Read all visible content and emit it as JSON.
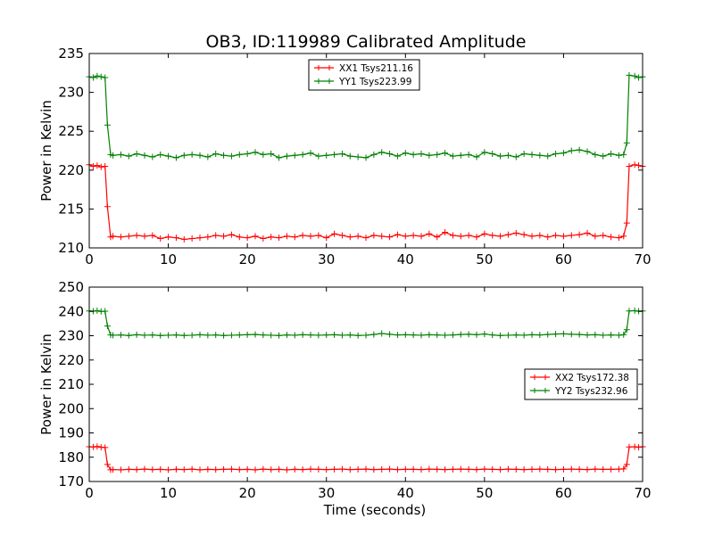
{
  "title": "OB3, ID:119989 Calibrated Amplitude",
  "colors": {
    "xx": "#ff0000",
    "yy": "#008000",
    "axes": "#000000",
    "background": "#ffffff"
  },
  "chart_data": [
    {
      "type": "line",
      "title": "OB3, ID:119989 Calibrated Amplitude",
      "xlabel": "",
      "ylabel": "Power in Kelvin",
      "xlim": [
        0,
        70
      ],
      "ylim": [
        210,
        235
      ],
      "xticks": [
        "0",
        "10",
        "20",
        "30",
        "40",
        "50",
        "60",
        "70"
      ],
      "yticks": [
        "210",
        "215",
        "220",
        "225",
        "230",
        "235"
      ],
      "grid": false,
      "legend_position": "top-center",
      "series": [
        {
          "name": "XX1 Tsys211.16",
          "color": "#ff0000",
          "marker": "+",
          "x": [
            0,
            0.5,
            1,
            1.5,
            2,
            2.3,
            2.7,
            3,
            4,
            5,
            6,
            7,
            8,
            9,
            10,
            11,
            12,
            13,
            14,
            15,
            16,
            17,
            18,
            19,
            20,
            21,
            22,
            23,
            24,
            25,
            26,
            27,
            28,
            29,
            30,
            31,
            32,
            33,
            34,
            35,
            36,
            37,
            38,
            39,
            40,
            41,
            42,
            43,
            44,
            45,
            46,
            47,
            48,
            49,
            50,
            51,
            52,
            53,
            54,
            55,
            56,
            57,
            58,
            59,
            60,
            61,
            62,
            63,
            64,
            65,
            66,
            67,
            67.6,
            68,
            68.3,
            69,
            69.5,
            70
          ],
          "y": [
            220.7,
            220.5,
            220.6,
            220.4,
            220.5,
            215.3,
            211.4,
            211.5,
            211.4,
            211.5,
            211.6,
            211.5,
            211.6,
            211.2,
            211.4,
            211.3,
            211.1,
            211.2,
            211.3,
            211.4,
            211.6,
            211.5,
            211.7,
            211.4,
            211.3,
            211.5,
            211.2,
            211.4,
            211.3,
            211.5,
            211.4,
            211.6,
            211.5,
            211.6,
            211.3,
            211.8,
            211.6,
            211.4,
            211.5,
            211.3,
            211.6,
            211.5,
            211.4,
            211.7,
            211.5,
            211.6,
            211.5,
            211.8,
            211.4,
            212.0,
            211.6,
            211.5,
            211.6,
            211.4,
            211.8,
            211.6,
            211.5,
            211.7,
            211.9,
            211.7,
            211.5,
            211.6,
            211.4,
            211.6,
            211.5,
            211.6,
            211.7,
            211.9,
            211.5,
            211.6,
            211.4,
            211.3,
            211.5,
            213.2,
            220.5,
            220.7,
            220.6,
            220.5
          ]
        },
        {
          "name": "YY1 Tsys223.99",
          "color": "#008000",
          "marker": "+",
          "x": [
            0,
            0.5,
            1,
            1.5,
            2,
            2.3,
            2.7,
            3,
            4,
            5,
            6,
            7,
            8,
            9,
            10,
            11,
            12,
            13,
            14,
            15,
            16,
            17,
            18,
            19,
            20,
            21,
            22,
            23,
            24,
            25,
            26,
            27,
            28,
            29,
            30,
            31,
            32,
            33,
            34,
            35,
            36,
            37,
            38,
            39,
            40,
            41,
            42,
            43,
            44,
            45,
            46,
            47,
            48,
            49,
            50,
            51,
            52,
            53,
            54,
            55,
            56,
            57,
            58,
            59,
            60,
            61,
            62,
            63,
            64,
            65,
            66,
            67,
            67.6,
            68,
            68.3,
            69,
            69.5,
            70
          ],
          "y": [
            232.0,
            231.9,
            232.1,
            232.0,
            231.9,
            225.8,
            222.0,
            221.9,
            222.0,
            221.8,
            222.1,
            221.9,
            221.7,
            222.0,
            221.8,
            221.6,
            221.9,
            222.0,
            221.9,
            221.7,
            222.1,
            221.9,
            221.8,
            222.0,
            222.1,
            222.3,
            222.0,
            222.1,
            221.6,
            221.8,
            221.9,
            222.0,
            222.2,
            221.8,
            221.9,
            222.0,
            222.1,
            221.8,
            221.7,
            221.6,
            222.0,
            222.3,
            222.1,
            221.8,
            222.2,
            222.0,
            222.1,
            221.9,
            222.0,
            222.2,
            221.8,
            221.9,
            222.0,
            221.7,
            222.3,
            222.1,
            221.8,
            221.9,
            221.7,
            222.1,
            222.0,
            221.9,
            221.8,
            222.1,
            222.2,
            222.5,
            222.6,
            222.4,
            222.0,
            221.8,
            222.1,
            221.9,
            222.0,
            223.5,
            232.2,
            232.1,
            231.9,
            232.0
          ]
        }
      ]
    },
    {
      "type": "line",
      "title": "",
      "xlabel": "Time (seconds)",
      "ylabel": "Power in Kelvin",
      "xlim": [
        0,
        70
      ],
      "ylim": [
        170,
        250
      ],
      "xticks": [
        "0",
        "10",
        "20",
        "30",
        "40",
        "50",
        "60",
        "70"
      ],
      "yticks": [
        "170",
        "180",
        "190",
        "200",
        "210",
        "220",
        "230",
        "240",
        "250"
      ],
      "grid": false,
      "legend_position": "center-right",
      "series": [
        {
          "name": "XX2 Tsys172.38",
          "color": "#ff0000",
          "marker": "+",
          "x": [
            0,
            0.5,
            1,
            1.5,
            2,
            2.3,
            2.7,
            3,
            4,
            5,
            6,
            7,
            8,
            9,
            10,
            11,
            12,
            13,
            14,
            15,
            16,
            17,
            18,
            19,
            20,
            21,
            22,
            23,
            24,
            25,
            26,
            27,
            28,
            29,
            30,
            31,
            32,
            33,
            34,
            35,
            36,
            37,
            38,
            39,
            40,
            41,
            42,
            43,
            44,
            45,
            46,
            47,
            48,
            49,
            50,
            51,
            52,
            53,
            54,
            55,
            56,
            57,
            58,
            59,
            60,
            61,
            62,
            63,
            64,
            65,
            66,
            67,
            67.6,
            68,
            68.3,
            69,
            69.5,
            70
          ],
          "y": [
            184.3,
            184.2,
            184.4,
            184.1,
            184.0,
            177.0,
            174.8,
            174.9,
            174.8,
            175.0,
            174.9,
            175.1,
            174.9,
            175.0,
            174.8,
            175.0,
            174.9,
            175.1,
            174.8,
            175.0,
            174.9,
            175.0,
            175.1,
            174.9,
            175.0,
            174.8,
            175.1,
            174.9,
            175.0,
            174.8,
            175.0,
            174.9,
            175.1,
            175.0,
            174.9,
            175.0,
            175.1,
            174.9,
            175.0,
            175.1,
            174.9,
            175.0,
            175.1,
            174.9,
            175.0,
            175.0,
            174.9,
            175.1,
            175.0,
            174.9,
            175.0,
            175.1,
            175.0,
            174.9,
            175.1,
            175.0,
            174.9,
            175.1,
            175.0,
            174.9,
            175.0,
            175.1,
            175.0,
            174.9,
            175.0,
            175.1,
            175.0,
            174.9,
            175.1,
            175.0,
            175.0,
            175.1,
            175.2,
            177.0,
            184.2,
            184.3,
            184.1,
            184.3
          ]
        },
        {
          "name": "YY2 Tsys232.96",
          "color": "#008000",
          "marker": "+",
          "x": [
            0,
            0.5,
            1,
            1.5,
            2,
            2.3,
            2.7,
            3,
            4,
            5,
            6,
            7,
            8,
            9,
            10,
            11,
            12,
            13,
            14,
            15,
            16,
            17,
            18,
            19,
            20,
            21,
            22,
            23,
            24,
            25,
            26,
            27,
            28,
            29,
            30,
            31,
            32,
            33,
            34,
            35,
            36,
            37,
            38,
            39,
            40,
            41,
            42,
            43,
            44,
            45,
            46,
            47,
            48,
            49,
            50,
            51,
            52,
            53,
            54,
            55,
            56,
            57,
            58,
            59,
            60,
            61,
            62,
            63,
            64,
            65,
            66,
            67,
            67.6,
            68,
            68.3,
            69,
            69.5,
            70
          ],
          "y": [
            240.2,
            240.1,
            240.3,
            240.0,
            240.1,
            234.0,
            230.3,
            230.2,
            230.3,
            230.1,
            230.4,
            230.2,
            230.3,
            230.1,
            230.2,
            230.3,
            230.1,
            230.2,
            230.4,
            230.2,
            230.3,
            230.1,
            230.2,
            230.3,
            230.4,
            230.5,
            230.3,
            230.2,
            230.1,
            230.3,
            230.2,
            230.4,
            230.3,
            230.2,
            230.3,
            230.4,
            230.2,
            230.3,
            230.1,
            230.2,
            230.5,
            230.9,
            230.6,
            230.3,
            230.4,
            230.3,
            230.2,
            230.4,
            230.3,
            230.2,
            230.3,
            230.5,
            230.6,
            230.4,
            230.7,
            230.3,
            230.1,
            230.2,
            230.3,
            230.2,
            230.4,
            230.3,
            230.5,
            230.7,
            230.8,
            230.6,
            230.5,
            230.3,
            230.4,
            230.2,
            230.3,
            230.2,
            230.4,
            232.5,
            240.2,
            240.3,
            240.1,
            240.2
          ]
        }
      ]
    }
  ]
}
